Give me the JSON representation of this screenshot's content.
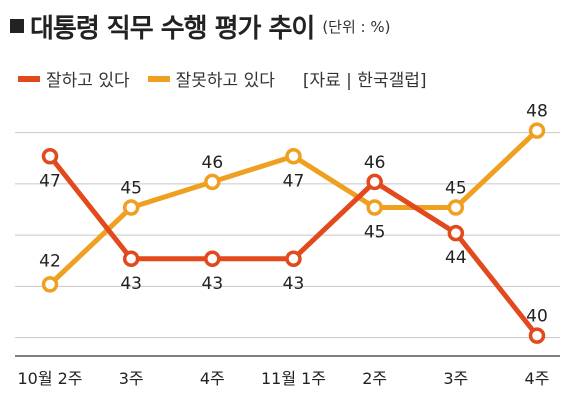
{
  "title": "대통령 직무 수행 평가 추이",
  "unit": "(단위 : %)",
  "legend": {
    "items": [
      {
        "label": "잘하고 있다",
        "color": "#e2491d"
      },
      {
        "label": "잘못하고 있다",
        "color": "#f0a020"
      }
    ],
    "source": "[자료 | 한국갤럽]"
  },
  "chart_data": {
    "type": "line",
    "categories": [
      "10월 2주",
      "3주",
      "4주",
      "11월 1주",
      "2주",
      "3주",
      "4주"
    ],
    "series": [
      {
        "name": "잘하고 있다",
        "color": "#e2491d",
        "values": [
          47,
          43,
          43,
          43,
          46,
          44,
          40
        ]
      },
      {
        "name": "잘못하고 있다",
        "color": "#f0a020",
        "values": [
          42,
          45,
          46,
          47,
          45,
          45,
          48
        ]
      }
    ],
    "title": "대통령 직무 수행 평가 추이",
    "xlabel": "",
    "ylabel": "",
    "ylim": [
      38,
      49
    ],
    "grid": true,
    "legend_position": "top-left"
  }
}
